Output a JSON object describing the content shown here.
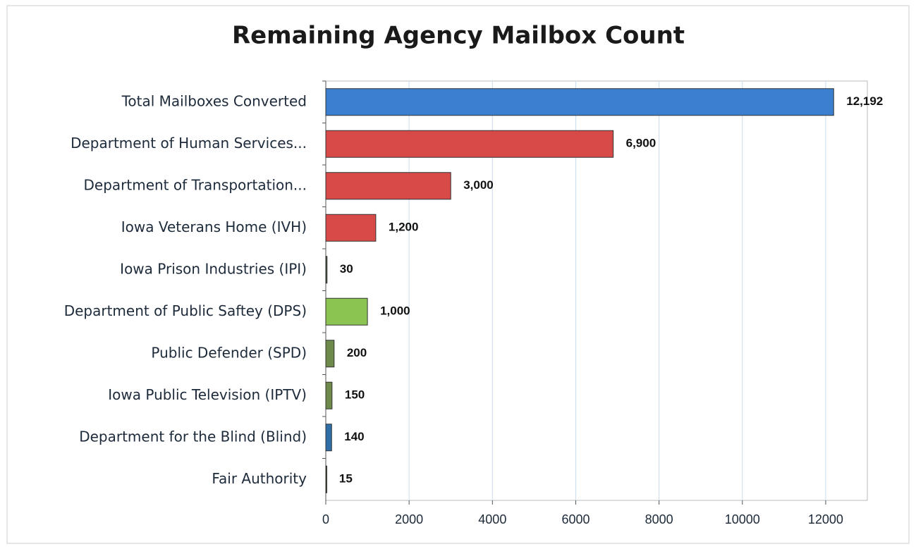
{
  "chart_data": {
    "type": "barh",
    "title": "Remaining Agency Mailbox Count",
    "categories": [
      "Total Mailboxes Converted",
      "Department of Human Services...",
      "Department of Transportation...",
      "Iowa Veterans Home (IVH)",
      "Iowa Prison Industries (IPI)",
      "Department of Public Saftey (DPS)",
      "Public Defender (SPD)",
      "Iowa Public Television (IPTV)",
      "Department for the Blind (Blind)",
      "Fair Authority"
    ],
    "values": [
      12192,
      6900,
      3000,
      1200,
      30,
      1000,
      200,
      150,
      140,
      15
    ],
    "value_labels": [
      "12,192",
      "6,900",
      "3,000",
      "1,200",
      "30",
      "1,000",
      "200",
      "150",
      "140",
      "15"
    ],
    "colors": [
      "#3a7fd0",
      "#d84a48",
      "#d84a48",
      "#d84a48",
      "#4a5a40",
      "#8cc452",
      "#6e8a4a",
      "#6e8a4a",
      "#2f6fa8",
      "#4a5a40"
    ],
    "xlim": [
      0,
      13000
    ],
    "xticks": [
      0,
      2000,
      4000,
      6000,
      8000,
      10000,
      12000
    ],
    "grid": true
  }
}
